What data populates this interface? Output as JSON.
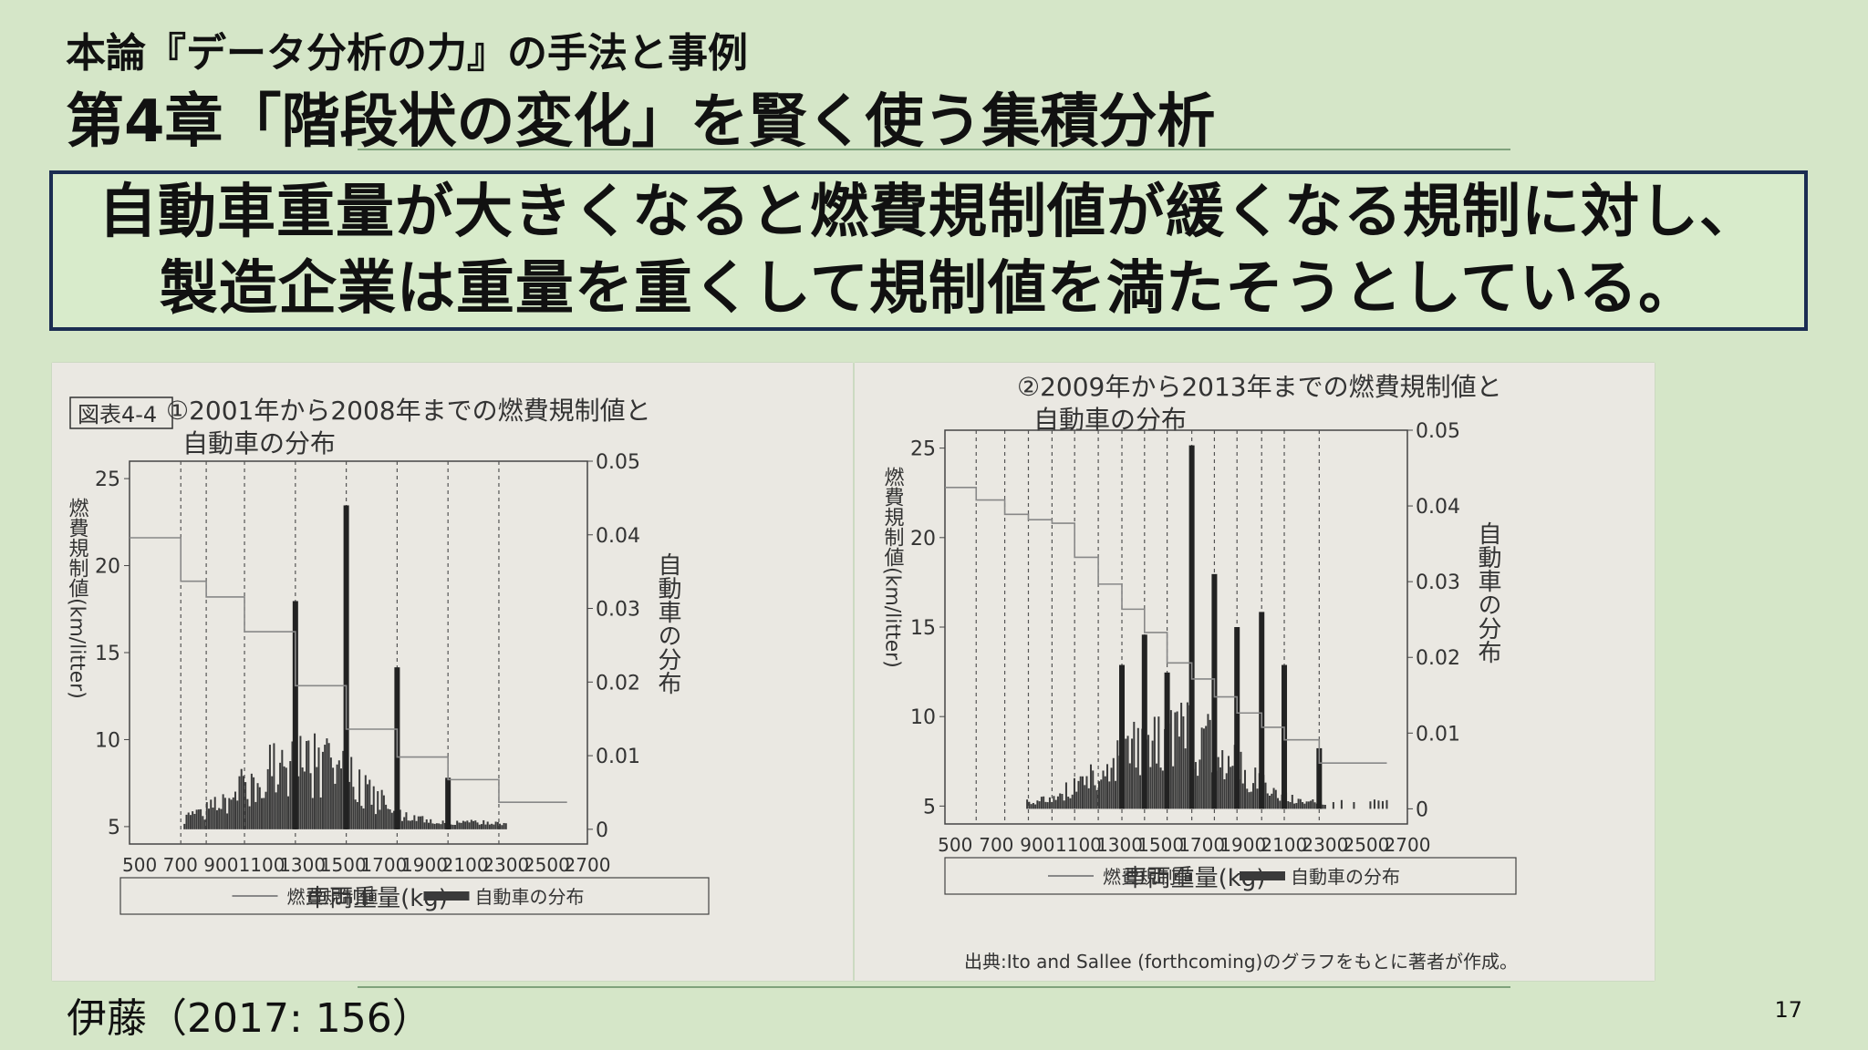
{
  "slide": {
    "subtitle": "本論『データ分析の力』の手法と事例",
    "title": "第4章「階段状の変化」を賢く使う集積分析",
    "message_line1": "自動車重量が大きくなると燃費規制値が緩くなる規制に対し、",
    "message_line2": "製造企業は重量を重くして規制値を満たそうとしている。",
    "source": "伊藤（2017: 156）",
    "page_number": "17"
  },
  "colors": {
    "background": "#d5e6c8",
    "box_border": "#1b2d52",
    "photo": "#eae8e2",
    "bars": "#3a3a3a",
    "step_line": "#888888",
    "divider": "#7fa27c"
  },
  "chart_data": [
    {
      "type": "bar",
      "figure_tag": "図表4-4",
      "title_line1": "①2001年から2008年までの燃費規制値と",
      "title_line2": "自動車の分布",
      "xlabel": "車両重量(kg)",
      "ylabel_left": "燃費規制値(km/litter)",
      "ylabel_right": "自動車の分布",
      "xlim": [
        450,
        2700
      ],
      "ylim_left": [
        4,
        26
      ],
      "ylim_right": [
        -0.002,
        0.05
      ],
      "x_ticks": [
        "500",
        "700",
        "900",
        "1100",
        "1300",
        "1500",
        "1700",
        "1900",
        "2100",
        "2300",
        "2500",
        "2700"
      ],
      "y_left_ticks": [
        "5",
        "10",
        "15",
        "20",
        "25"
      ],
      "y_right_ticks": [
        "0",
        "0.01",
        "0.02",
        "0.03",
        "0.04",
        "0.05"
      ],
      "thresholds": [
        702,
        827,
        1015,
        1265,
        1515,
        1765,
        2015,
        2265
      ],
      "regulation_steps": [
        {
          "x0": 450,
          "x1": 702,
          "y": 21.6
        },
        {
          "x0": 702,
          "x1": 827,
          "y": 19.1
        },
        {
          "x0": 827,
          "x1": 1015,
          "y": 18.2
        },
        {
          "x0": 1015,
          "x1": 1265,
          "y": 16.2
        },
        {
          "x0": 1265,
          "x1": 1515,
          "y": 13.1
        },
        {
          "x0": 1515,
          "x1": 1765,
          "y": 10.6
        },
        {
          "x0": 1765,
          "x1": 2015,
          "y": 9.0
        },
        {
          "x0": 2015,
          "x1": 2265,
          "y": 7.7
        },
        {
          "x0": 2265,
          "x1": 2600,
          "y": 6.4
        }
      ],
      "distribution_peaks": [
        {
          "x": 1265,
          "y": 0.031
        },
        {
          "x": 1515,
          "y": 0.044
        },
        {
          "x": 1765,
          "y": 0.022
        },
        {
          "x": 2015,
          "y": 0.007
        }
      ],
      "legend": [
        "燃費規制値",
        "自動車の分布"
      ],
      "legend_position": "bottom"
    },
    {
      "type": "bar",
      "title_line1": "②2009年から2013年までの燃費規制値と",
      "title_line2": "自動車の分布",
      "xlabel": "車両重量(kg)",
      "ylabel_left": "燃費規制値(km/litter)",
      "ylabel_right": "自動車の分布",
      "xlim": [
        450,
        2700
      ],
      "ylim_left": [
        4,
        26
      ],
      "ylim_right": [
        -0.002,
        0.05
      ],
      "x_ticks": [
        "500",
        "700",
        "900",
        "1100",
        "1300",
        "1500",
        "1700",
        "1900",
        "2100",
        "2300",
        "2500",
        "2700"
      ],
      "y_left_ticks": [
        "5",
        "10",
        "15",
        "20",
        "25"
      ],
      "y_right_ticks": [
        "0",
        "0.01",
        "0.02",
        "0.03",
        "0.04",
        "0.05"
      ],
      "thresholds": [
        602,
        741,
        856,
        971,
        1081,
        1196,
        1311,
        1421,
        1531,
        1651,
        1761,
        1871,
        1991,
        2101,
        2271
      ],
      "regulation_steps": [
        {
          "x0": 450,
          "x1": 602,
          "y": 22.8
        },
        {
          "x0": 602,
          "x1": 741,
          "y": 22.1
        },
        {
          "x0": 741,
          "x1": 856,
          "y": 21.3
        },
        {
          "x0": 856,
          "x1": 971,
          "y": 21.0
        },
        {
          "x0": 971,
          "x1": 1081,
          "y": 20.8
        },
        {
          "x0": 1081,
          "x1": 1196,
          "y": 18.9
        },
        {
          "x0": 1196,
          "x1": 1311,
          "y": 17.4
        },
        {
          "x0": 1311,
          "x1": 1421,
          "y": 16.0
        },
        {
          "x0": 1421,
          "x1": 1531,
          "y": 14.7
        },
        {
          "x0": 1531,
          "x1": 1651,
          "y": 13.0
        },
        {
          "x0": 1651,
          "x1": 1761,
          "y": 12.1
        },
        {
          "x0": 1761,
          "x1": 1871,
          "y": 11.1
        },
        {
          "x0": 1871,
          "x1": 1991,
          "y": 10.2
        },
        {
          "x0": 1991,
          "x1": 2101,
          "y": 9.4
        },
        {
          "x0": 2101,
          "x1": 2271,
          "y": 8.7
        },
        {
          "x0": 2271,
          "x1": 2600,
          "y": 7.4
        }
      ],
      "distribution_peaks": [
        {
          "x": 1311,
          "y": 0.019
        },
        {
          "x": 1421,
          "y": 0.023
        },
        {
          "x": 1531,
          "y": 0.018
        },
        {
          "x": 1651,
          "y": 0.048
        },
        {
          "x": 1761,
          "y": 0.031
        },
        {
          "x": 1871,
          "y": 0.024
        },
        {
          "x": 1991,
          "y": 0.026
        },
        {
          "x": 2101,
          "y": 0.019
        },
        {
          "x": 2271,
          "y": 0.008
        }
      ],
      "legend": [
        "燃費規制値",
        "自動車の分布"
      ],
      "legend_position": "bottom",
      "source_note": "出典:Ito and Sallee (forthcoming)のグラフをもとに著者が作成。"
    }
  ]
}
